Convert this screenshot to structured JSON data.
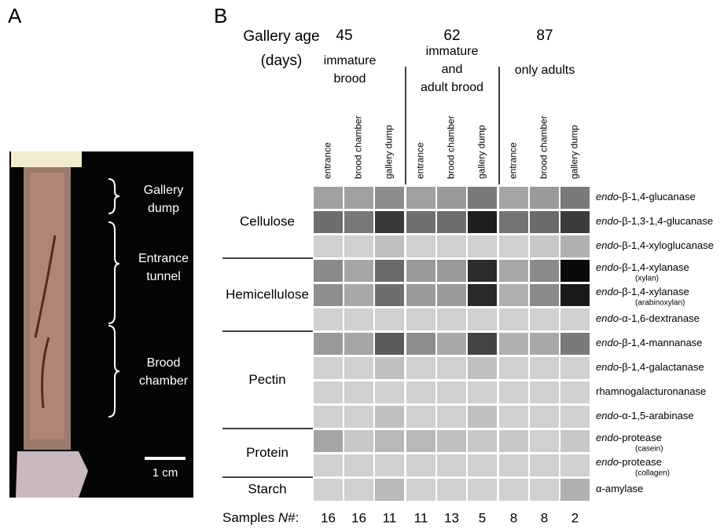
{
  "panel_a": {
    "letter": "A",
    "labels": [
      [
        "Gallery",
        "dump"
      ],
      [
        "Entrance",
        "tunnel"
      ],
      [
        "Brood",
        "chamber"
      ]
    ],
    "scale_bar": "1 cm"
  },
  "panel_b": {
    "letter": "B",
    "age_title": [
      "Gallery age",
      "(days)"
    ],
    "groups": [
      {
        "age": "45",
        "description": [
          "immature",
          "brood"
        ],
        "columns": [
          "entrance",
          "brood chamber",
          "gallery dump"
        ],
        "samples": [
          "16",
          "16",
          "11"
        ]
      },
      {
        "age": "62",
        "description": [
          "immature",
          "and",
          "adult brood"
        ],
        "columns": [
          "entrance",
          "brood chamber",
          "gallery dump"
        ],
        "samples": [
          "11",
          "13",
          "5"
        ]
      },
      {
        "age": "87",
        "description": [
          "only adults"
        ],
        "columns": [
          "entrance",
          "brood chamber",
          "gallery dump"
        ],
        "samples": [
          "8",
          "8",
          "2"
        ]
      }
    ],
    "categories": [
      {
        "name": "Cellulose",
        "enzymes": [
          {
            "italic": "endo",
            "rest": "-β-1,4-glucanase",
            "colors": [
              "#a0a0a0",
              "#a0a0a0",
              "#8c8c8c",
              "#a0a0a0",
              "#999999",
              "#7a7a7a",
              "#a5a5a5",
              "#9a9a9a",
              "#7a7a7a"
            ]
          },
          {
            "italic": "endo",
            "rest": "-β-1,3-1,4-glucanase",
            "colors": [
              "#6e6e6e",
              "#787878",
              "#3a3a3a",
              "#707070",
              "#6e6e6e",
              "#1e1e1e",
              "#737373",
              "#6a6a6a",
              "#3c3c3c"
            ]
          },
          {
            "italic": "endo",
            "rest": "-β-1,4-xyloglucanase",
            "colors": [
              "#d0d0d0",
              "#d0d0d0",
              "#c0c0c0",
              "#d0d0d0",
              "#d0d0d0",
              "#d0d0d0",
              "#d0d0d0",
              "#c8c8c8",
              "#b0b0b0"
            ]
          }
        ]
      },
      {
        "name": "Hemicellulose",
        "enzymes": [
          {
            "italic": "endo",
            "rest": "-β-1,4-xylanase",
            "note": "(xylan)",
            "colors": [
              "#8a8a8a",
              "#a5a5a5",
              "#6a6a6a",
              "#9a9a9a",
              "#9a9a9a",
              "#2c2c2c",
              "#a8a8a8",
              "#8a8a8a",
              "#0a0a0a"
            ]
          },
          {
            "italic": "endo",
            "rest": "-β-1,4-xylanase",
            "note": "(arabinoxylan)",
            "colors": [
              "#8e8e8e",
              "#a8a8a8",
              "#6e6e6e",
              "#9a9a9a",
              "#9a9a9a",
              "#2a2a2a",
              "#b0b0b0",
              "#8a8a8a",
              "#1a1a1a"
            ]
          },
          {
            "italic": "endo",
            "rest": "-α-1,6-dextranase",
            "colors": [
              "#d0d0d0",
              "#d0d0d0",
              "#d0d0d0",
              "#d0d0d0",
              "#d0d0d0",
              "#d0d0d0",
              "#d0d0d0",
              "#d0d0d0",
              "#d0d0d0"
            ]
          }
        ]
      },
      {
        "name": "Pectin",
        "enzymes": [
          {
            "italic": "endo",
            "rest": "-β-1,4-mannanase",
            "colors": [
              "#9a9a9a",
              "#a5a5a5",
              "#5a5a5a",
              "#8e8e8e",
              "#a8a8a8",
              "#444444",
              "#b0b0b0",
              "#a8a8a8",
              "#7a7a7a"
            ]
          },
          {
            "italic": "endo",
            "rest": "-β-1,4-galactanase",
            "colors": [
              "#d0d0d0",
              "#d0d0d0",
              "#c0c0c0",
              "#d0d0d0",
              "#d0d0d0",
              "#c0c0c0",
              "#d0d0d0",
              "#d0d0d0",
              "#d0d0d0"
            ]
          },
          {
            "rest": "rhamnogalacturonanase",
            "colors": [
              "#d0d0d0",
              "#d0d0d0",
              "#d0d0d0",
              "#d0d0d0",
              "#d0d0d0",
              "#d0d0d0",
              "#d0d0d0",
              "#d0d0d0",
              "#d0d0d0"
            ]
          },
          {
            "italic": "endo",
            "rest": "-α-1,5-arabinase",
            "colors": [
              "#d0d0d0",
              "#d0d0d0",
              "#c0c0c0",
              "#d0d0d0",
              "#d0d0d0",
              "#c0c0c0",
              "#d0d0d0",
              "#d0d0d0",
              "#d0d0d0"
            ]
          }
        ]
      },
      {
        "name": "Protein",
        "enzymes": [
          {
            "italic": "endo",
            "rest": "-protease",
            "note": "(casein)",
            "colors": [
              "#a5a5a5",
              "#c8c8c8",
              "#b8b8b8",
              "#b8b8b8",
              "#c0c0c0",
              "#c8c8c8",
              "#c8c8c8",
              "#d0d0d0",
              "#c8c8c8"
            ]
          },
          {
            "italic": "endo",
            "rest": "-protease",
            "note": "(collagen)",
            "colors": [
              "#d0d0d0",
              "#d0d0d0",
              "#d0d0d0",
              "#d0d0d0",
              "#d0d0d0",
              "#d0d0d0",
              "#d0d0d0",
              "#d0d0d0",
              "#d0d0d0"
            ]
          }
        ]
      },
      {
        "name": "Starch",
        "enzymes": [
          {
            "rest": "α-amylase",
            "colors": [
              "#d0d0d0",
              "#d0d0d0",
              "#b8b8b8",
              "#d0d0d0",
              "#d0d0d0",
              "#d0d0d0",
              "#d0d0d0",
              "#d0d0d0",
              "#b0b0b0"
            ]
          }
        ]
      }
    ],
    "samples_label": {
      "pre": "Samples ",
      "italic": "N",
      "post": "#:"
    }
  }
}
